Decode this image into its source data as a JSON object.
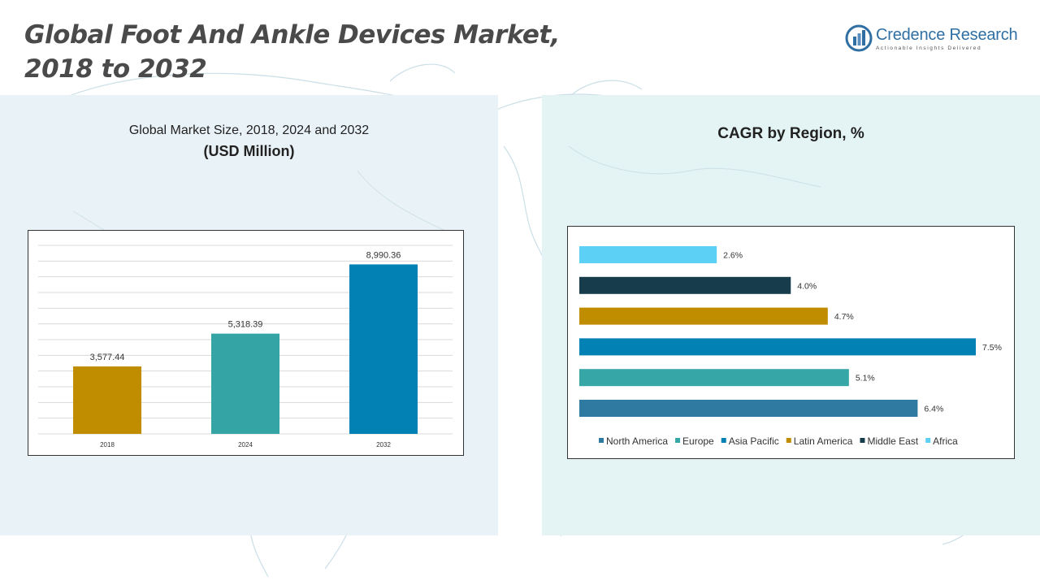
{
  "header": {
    "title_line1": "Global Foot And Ankle Devices Market,",
    "title_line2": "2018 to 2032"
  },
  "logo": {
    "name": "Credence Research",
    "tagline": "Actionable Insights Delivered",
    "icon": "credence-logo-icon",
    "brand_color": "#2f6fa3"
  },
  "left_panel": {
    "subtitle": "Global Market Size, 2018, 2024 and 2032",
    "unit": "(USD Million)"
  },
  "right_panel": {
    "title": "CAGR by Region, %"
  },
  "chart_data": [
    {
      "type": "bar",
      "title": "Global Market Size, 2018, 2024 and 2032",
      "ylabel": "(USD Million)",
      "categories": [
        "2018",
        "2024",
        "2032"
      ],
      "values": [
        3577.44,
        5318.39,
        8990.36
      ],
      "value_labels": [
        "3,577.44",
        "5,318.39",
        "8,990.36"
      ],
      "colors": [
        "#c08d00",
        "#34a4a4",
        "#0281b4"
      ],
      "ylim": [
        0,
        10000
      ],
      "grid": true
    },
    {
      "type": "bar",
      "orientation": "horizontal",
      "title": "CAGR by Region, %",
      "categories": [
        "North America",
        "Europe",
        "Asia Pacific",
        "Latin America",
        "Middle East",
        "Africa"
      ],
      "values": [
        6.4,
        5.1,
        7.5,
        4.7,
        4.0,
        2.6
      ],
      "value_labels": [
        "6.4%",
        "5.1%",
        "7.5%",
        "4.7%",
        "4.0%",
        "2.6%"
      ],
      "colors": [
        "#2e7aa0",
        "#36a6a6",
        "#0281b4",
        "#c08d00",
        "#173d4d",
        "#5dd0f5"
      ],
      "xlim": [
        0,
        7.5
      ],
      "legend": "bottom",
      "grid": false
    }
  ]
}
